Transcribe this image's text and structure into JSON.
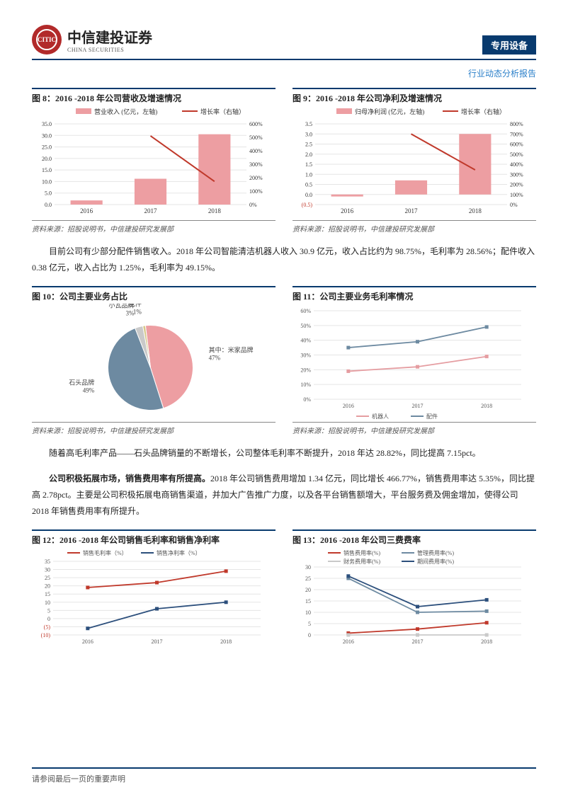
{
  "header": {
    "logo_cn": "中信建投证券",
    "logo_en": "CHINA SECURITIES",
    "logo_abbr": "CITIC",
    "tag": "专用设备",
    "sub": "行业动态分析报告"
  },
  "figures": {
    "f8": {
      "title": "图 8：2016 -2018 年公司营收及增速情况",
      "source": "资料来源：招股说明书，中信建投研究发展部",
      "type": "bar+line",
      "categories": [
        "2016",
        "2017",
        "2018"
      ],
      "bar_label": "营业收入 (亿元，左轴)",
      "line_label": "增长率（右轴）",
      "bars": [
        1.8,
        11.2,
        30.5
      ],
      "line": [
        null,
        511,
        172
      ],
      "y_left": {
        "min": 0,
        "max": 35,
        "step": 5
      },
      "y_right": {
        "min": 0,
        "max": 600,
        "step": 100,
        "suffix": "%"
      },
      "bar_color": "#ed9ea2",
      "line_color": "#c0392b",
      "grid_color": "#e5e5e5",
      "label_fontsize": 9
    },
    "f9": {
      "title": "图 9：2016 -2018 年公司净利及增速情况",
      "source": "资料来源：招股说明书，中信建投研究发展部",
      "type": "bar+line",
      "categories": [
        "2016",
        "2017",
        "2018"
      ],
      "bar_label": "归母净利润 (亿元，左轴)",
      "line_label": "增长率（右轴）",
      "bars": [
        -0.1,
        0.7,
        3.0
      ],
      "line": [
        null,
        700,
        344
      ],
      "y_left": {
        "min": -0.5,
        "max": 3.5,
        "step": 0.5
      },
      "y_right": {
        "min": 0,
        "max": 800,
        "step": 100,
        "suffix": "%"
      },
      "bar_color": "#ed9ea2",
      "line_color": "#c0392b",
      "grid_color": "#e5e5e5",
      "neg_label_color": "#c0392b"
    },
    "f10": {
      "title": "图 10：公司主要业务占比",
      "source": "资料来源：招股说明书，中信建投研究发展部",
      "type": "pie",
      "slices": [
        {
          "label": "其中：米家品牌",
          "pct": 47,
          "color": "#ed9ea2",
          "label_pos": "right"
        },
        {
          "label": "石头品牌",
          "pct": 49,
          "color": "#6d8aa1",
          "label_pos": "left"
        },
        {
          "label": "小瓦品牌",
          "pct": 3,
          "color": "#c9c9c9",
          "label_pos": "top-left"
        },
        {
          "label": "配件",
          "pct": 1,
          "color": "#d6c88a",
          "label_pos": "top"
        }
      ]
    },
    "f11": {
      "title": "图 11：公司主要业务毛利率情况",
      "source": "资料来源：招股说明书，中信建投研究发展部",
      "type": "line",
      "categories": [
        "2016",
        "2017",
        "2018"
      ],
      "series": [
        {
          "label": "机器人",
          "color": "#e59da1",
          "values": [
            19,
            22,
            29
          ]
        },
        {
          "label": "配件",
          "color": "#6d8aa1",
          "values": [
            35,
            39,
            49
          ]
        }
      ],
      "y": {
        "min": 0,
        "max": 60,
        "step": 10,
        "suffix": "%"
      },
      "grid_color": "#e5e5e5"
    },
    "f12": {
      "title": "图 12：2016 -2018 年公司销售毛利率和销售净利率",
      "source": "",
      "type": "line",
      "categories": [
        "2016",
        "2017",
        "2018"
      ],
      "series": [
        {
          "label": "销售毛利率（%）",
          "color": "#c0392b",
          "values": [
            19,
            22,
            29
          ]
        },
        {
          "label": "销售净利率（%）",
          "color": "#2c4f7c",
          "values": [
            -6,
            6,
            10
          ]
        }
      ],
      "y": {
        "min": -10,
        "max": 35,
        "step": 5
      },
      "grid_color": "#e5e5e5"
    },
    "f13": {
      "title": "图 13：2016 -2018 年公司三费费率",
      "source": "",
      "type": "line",
      "categories": [
        "2016",
        "2017",
        "2018"
      ],
      "series": [
        {
          "label": "销售费用率(%)",
          "color": "#c0392b",
          "values": [
            0.8,
            2.6,
            5.4
          ]
        },
        {
          "label": "管理费用率(%)",
          "color": "#6d8aa1",
          "values": [
            25,
            10,
            10.5
          ]
        },
        {
          "label": "财务费用率(%)",
          "color": "#c9c9c9",
          "values": [
            0,
            0,
            0
          ]
        },
        {
          "label": "期间费用率(%)",
          "color": "#2c4f7c",
          "values": [
            26,
            12.5,
            15.5
          ]
        }
      ],
      "y": {
        "min": 0,
        "max": 30,
        "step": 5
      },
      "grid_color": "#e5e5e5"
    }
  },
  "paragraphs": {
    "p1": "目前公司有少部分配件销售收入。2018 年公司智能清洁机器人收入 30.9 亿元，收入占比约为 98.75%，毛利率为 28.56%；配件收入 0.38 亿元，收入占比为 1.25%，毛利率为 49.15%。",
    "p2": "随着高毛利率产品——石头品牌销量的不断增长，公司整体毛利率不断提升，2018 年达 28.82%，同比提高 7.15pct。",
    "p3_lead": "公司积极拓展市场，销售费用率有所提高。",
    "p3_rest": "2018 年公司销售费用增加 1.34 亿元，同比增长 466.77%，销售费用率达 5.35%，同比提高 2.78pct。主要是公司积极拓展电商销售渠道，并加大广告推广力度，以及各平台销售额增大，平台服务费及佣金增加，使得公司 2018 年销售费用率有所提升。"
  },
  "footer": "请参阅最后一页的重要声明"
}
